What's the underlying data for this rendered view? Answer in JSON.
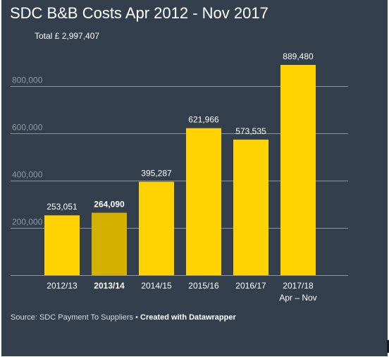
{
  "page": {
    "background": "#333f4c",
    "text_color": "#ffffff",
    "grid_color": "#8a949e",
    "axis_label_color": "#8f99a3"
  },
  "footer": {
    "source": "Source: SDC Payment To Suppliers",
    "separator": "•",
    "credit": "Created with Datawrapper"
  },
  "chart_data": {
    "type": "bar",
    "title": "SDC B&B Costs Apr 2012 - Nov 2017",
    "subtitle": "Total £ 2,997,407",
    "xlabel": "",
    "ylabel": "",
    "ylim": [
      0,
      1000000
    ],
    "yticks": [
      200000,
      400000,
      600000,
      800000
    ],
    "ytick_labels": [
      "200,000",
      "400,000",
      "600,000",
      "800,000"
    ],
    "grid": true,
    "legend": "none",
    "categories": [
      "2012/13",
      "2013/14",
      "2014/15",
      "2015/16",
      "2016/17",
      "2017/18"
    ],
    "category_sublabels": [
      "",
      "",
      "",
      "",
      "",
      "Apr – Nov"
    ],
    "values": [
      253051,
      264090,
      395287,
      621966,
      573535,
      889480
    ],
    "value_labels": [
      "253,051",
      "264,090",
      "395,287",
      "621,966",
      "573,535",
      "889,480"
    ],
    "highlighted_index": 1,
    "bar_color": "#ffd200",
    "highlight_color": "#d4b000"
  }
}
